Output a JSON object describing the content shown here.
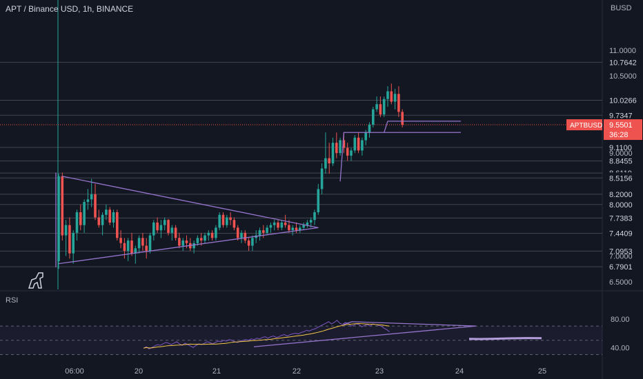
{
  "header": {
    "symbol": "APT / Binance USD, 1h, BINANCE",
    "currency": "BUSD"
  },
  "rsi": {
    "label": "RSI"
  },
  "colors": {
    "up": "#26a69a",
    "down": "#ef5350",
    "drawing": "#9575cd",
    "rsi_line": "#7e57c2",
    "rsi_ma": "#f7c948",
    "background": "#131722"
  },
  "chart_data": {
    "type": "candlestick",
    "symbol": "APTBUSD",
    "interval": "1h",
    "x_ticks": [
      "06:00",
      "20",
      "21",
      "22",
      "23",
      "24",
      "25"
    ],
    "y_ticks": [
      "11.0000",
      "10.5000",
      "9.0000",
      "7.0000",
      "6.5000"
    ],
    "ylim": [
      6.35,
      11.6
    ],
    "horizontal_levels": [
      "10.7642",
      "10.0266",
      "9.7347",
      "9.1100",
      "8.8455",
      "8.6110",
      "8.5156",
      "8.2000",
      "8.0000",
      "7.7383",
      "7.4409",
      "7.0953",
      "6.7901"
    ],
    "last_price": {
      "symbol": "APTBUSD",
      "price": "9.5501",
      "countdown": "36:28"
    },
    "ohlc": [
      [
        6.9,
        8.6,
        6.75,
        8.55
      ],
      [
        8.55,
        8.62,
        7.3,
        7.4
      ],
      [
        7.4,
        7.7,
        7.0,
        7.6
      ],
      [
        7.6,
        7.75,
        6.95,
        7.05
      ],
      [
        7.05,
        7.5,
        6.85,
        7.45
      ],
      [
        7.45,
        7.9,
        7.3,
        7.85
      ],
      [
        7.85,
        8.0,
        7.5,
        7.6
      ],
      [
        7.6,
        8.1,
        7.45,
        8.05
      ],
      [
        8.05,
        8.3,
        7.9,
        8.1
      ],
      [
        8.1,
        8.5,
        7.95,
        8.2
      ],
      [
        8.2,
        8.4,
        7.7,
        7.75
      ],
      [
        7.75,
        7.9,
        7.55,
        7.6
      ],
      [
        7.6,
        7.85,
        7.4,
        7.8
      ],
      [
        7.8,
        8.0,
        7.7,
        7.9
      ],
      [
        7.9,
        7.95,
        7.6,
        7.65
      ],
      [
        7.65,
        7.9,
        7.55,
        7.85
      ],
      [
        7.85,
        7.9,
        7.3,
        7.35
      ],
      [
        7.35,
        7.5,
        7.15,
        7.25
      ],
      [
        7.25,
        7.35,
        6.95,
        7.1
      ],
      [
        7.1,
        7.35,
        6.9,
        7.3
      ],
      [
        7.3,
        7.45,
        7.0,
        7.05
      ],
      [
        7.05,
        7.2,
        6.85,
        7.15
      ],
      [
        7.15,
        7.4,
        7.05,
        7.35
      ],
      [
        7.35,
        7.45,
        7.1,
        7.2
      ],
      [
        7.2,
        7.35,
        6.95,
        7.1
      ],
      [
        7.1,
        7.45,
        7.05,
        7.4
      ],
      [
        7.4,
        7.7,
        7.3,
        7.65
      ],
      [
        7.65,
        7.75,
        7.45,
        7.5
      ],
      [
        7.5,
        7.7,
        7.35,
        7.6
      ],
      [
        7.6,
        7.75,
        7.5,
        7.7
      ],
      [
        7.7,
        7.72,
        7.4,
        7.45
      ],
      [
        7.45,
        7.6,
        7.3,
        7.55
      ],
      [
        7.55,
        7.6,
        7.3,
        7.35
      ],
      [
        7.35,
        7.45,
        7.15,
        7.2
      ],
      [
        7.2,
        7.35,
        7.1,
        7.3
      ],
      [
        7.3,
        7.4,
        7.15,
        7.25
      ],
      [
        7.25,
        7.35,
        7.1,
        7.15
      ],
      [
        7.15,
        7.3,
        7.05,
        7.25
      ],
      [
        7.25,
        7.4,
        7.2,
        7.35
      ],
      [
        7.35,
        7.45,
        7.2,
        7.3
      ],
      [
        7.3,
        7.45,
        7.25,
        7.4
      ],
      [
        7.4,
        7.5,
        7.3,
        7.45
      ],
      [
        7.45,
        7.5,
        7.3,
        7.35
      ],
      [
        7.35,
        7.6,
        7.3,
        7.55
      ],
      [
        7.55,
        7.85,
        7.5,
        7.8
      ],
      [
        7.8,
        7.85,
        7.55,
        7.6
      ],
      [
        7.6,
        7.8,
        7.55,
        7.75
      ],
      [
        7.75,
        7.85,
        7.6,
        7.7
      ],
      [
        7.7,
        7.75,
        7.5,
        7.55
      ],
      [
        7.55,
        7.6,
        7.3,
        7.35
      ],
      [
        7.35,
        7.5,
        7.25,
        7.45
      ],
      [
        7.45,
        7.5,
        7.25,
        7.3
      ],
      [
        7.3,
        7.35,
        7.1,
        7.2
      ],
      [
        7.2,
        7.4,
        7.1,
        7.35
      ],
      [
        7.35,
        7.5,
        7.25,
        7.4
      ],
      [
        7.4,
        7.55,
        7.3,
        7.5
      ],
      [
        7.5,
        7.6,
        7.35,
        7.45
      ],
      [
        7.45,
        7.6,
        7.4,
        7.55
      ],
      [
        7.55,
        7.65,
        7.45,
        7.6
      ],
      [
        7.6,
        7.7,
        7.5,
        7.65
      ],
      [
        7.65,
        7.7,
        7.5,
        7.55
      ],
      [
        7.55,
        7.7,
        7.5,
        7.65
      ],
      [
        7.65,
        7.8,
        7.55,
        7.6
      ],
      [
        7.6,
        7.7,
        7.45,
        7.5
      ],
      [
        7.5,
        7.6,
        7.4,
        7.55
      ],
      [
        7.55,
        7.65,
        7.45,
        7.5
      ],
      [
        7.5,
        7.6,
        7.45,
        7.55
      ],
      [
        7.55,
        7.65,
        7.5,
        7.6
      ],
      [
        7.6,
        7.7,
        7.55,
        7.65
      ],
      [
        7.65,
        7.75,
        7.55,
        7.7
      ],
      [
        7.7,
        7.9,
        7.6,
        7.85
      ],
      [
        7.85,
        8.4,
        7.8,
        8.3
      ],
      [
        8.3,
        8.8,
        8.2,
        8.7
      ],
      [
        8.7,
        9.4,
        8.6,
        8.9
      ],
      [
        8.9,
        9.2,
        8.6,
        8.8
      ],
      [
        8.8,
        9.3,
        8.75,
        9.2
      ],
      [
        9.2,
        9.4,
        8.9,
        9.0
      ],
      [
        9.0,
        9.3,
        8.95,
        9.25
      ],
      [
        9.25,
        9.4,
        9.0,
        9.1
      ],
      [
        9.1,
        9.2,
        8.85,
        8.95
      ],
      [
        8.95,
        9.1,
        8.85,
        9.05
      ],
      [
        9.05,
        9.35,
        9.0,
        9.3
      ],
      [
        9.3,
        9.4,
        9.0,
        9.05
      ],
      [
        9.05,
        9.3,
        8.95,
        9.25
      ],
      [
        9.25,
        9.45,
        9.15,
        9.4
      ],
      [
        9.4,
        9.6,
        9.3,
        9.55
      ],
      [
        9.55,
        9.9,
        9.5,
        9.85
      ],
      [
        9.85,
        10.1,
        9.8,
        9.95
      ],
      [
        9.95,
        10.1,
        9.7,
        9.75
      ],
      [
        9.75,
        10.1,
        9.7,
        10.05
      ],
      [
        10.05,
        10.3,
        9.9,
        10.2
      ],
      [
        10.2,
        10.35,
        9.95,
        10.0
      ],
      [
        10.0,
        10.25,
        9.85,
        10.15
      ],
      [
        10.15,
        10.3,
        9.7,
        9.8
      ],
      [
        9.8,
        9.85,
        9.5,
        9.55
      ]
    ],
    "drawings": {
      "triangle_upper": [
        [
          0,
          8.55
        ],
        [
          71,
          7.55
        ]
      ],
      "triangle_lower": [
        [
          0,
          6.85
        ],
        [
          71,
          7.55
        ]
      ],
      "resistance_box_left": [
        [
          0,
          8.62
        ],
        [
          0,
          6.78
        ]
      ],
      "level_1": {
        "from": 78,
        "to": 110,
        "price": 9.4
      },
      "level_2": {
        "from": 90,
        "to": 110,
        "price": 9.62
      }
    },
    "rsi": {
      "y_ticks": [
        "80.00",
        "40.00"
      ],
      "ylim": [
        20,
        100
      ],
      "bands": [
        70,
        30,
        50
      ],
      "values": [
        39,
        41,
        38,
        40,
        42,
        44,
        43,
        45,
        47,
        46,
        44,
        46,
        48,
        45,
        43,
        46,
        44,
        42,
        40,
        43,
        45,
        44,
        46,
        48,
        47,
        45,
        47,
        49,
        48,
        50,
        49,
        51,
        50,
        48,
        47,
        49,
        50,
        51,
        50,
        52,
        51,
        53,
        52,
        54,
        55,
        53,
        55,
        56,
        54,
        55,
        57,
        58,
        56,
        58,
        59,
        60,
        59,
        61,
        62,
        64,
        63,
        65,
        66,
        68,
        70,
        72,
        74,
        76,
        73,
        75,
        78,
        74,
        72,
        75,
        74,
        70,
        71,
        73,
        72,
        69,
        71,
        72,
        70,
        73,
        72,
        71,
        70,
        67,
        65,
        62
      ]
    }
  }
}
